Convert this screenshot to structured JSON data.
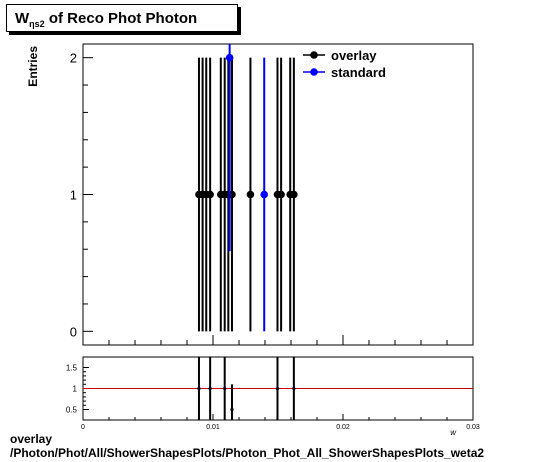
{
  "title": {
    "symbol": "W",
    "subscript": "ηs2",
    "rest": " of Reco Phot Photon"
  },
  "footer": {
    "line1": "overlay",
    "line2": "/Photon/Phot/All/ShowerShapesPlots/Photon_Phot_All_ShowerShapesPlots_weta2"
  },
  "chart_data": [
    {
      "type": "scatter",
      "ylabel": "Entries",
      "xlim": [
        0,
        0.03
      ],
      "ylim": [
        -0.1,
        2.1
      ],
      "x_ticks": [
        {
          "v": 0,
          "label": "0"
        },
        {
          "v": 0.01,
          "label": "0.01"
        },
        {
          "v": 0.02,
          "label": "0.02"
        },
        {
          "v": 0.03,
          "label": "0.03"
        }
      ],
      "y_ticks": [
        {
          "v": 0,
          "label": "0"
        },
        {
          "v": 1,
          "label": "1"
        },
        {
          "v": 2,
          "label": "2"
        }
      ],
      "legend_placement": "top-right",
      "series": [
        {
          "name": "overlay",
          "color": "#000000",
          "points": [
            {
              "x": 0.00892,
              "y": 1,
              "err": 1
            },
            {
              "x": 0.0092,
              "y": 1,
              "err": 1
            },
            {
              "x": 0.00948,
              "y": 1,
              "err": 1
            },
            {
              "x": 0.00978,
              "y": 1,
              "err": 1
            },
            {
              "x": 0.0106,
              "y": 1,
              "err": 1
            },
            {
              "x": 0.0109,
              "y": 1,
              "err": 1
            },
            {
              "x": 0.01118,
              "y": 1,
              "err": 1
            },
            {
              "x": 0.01146,
              "y": 1,
              "err": 1
            },
            {
              "x": 0.01288,
              "y": 1,
              "err": 1
            },
            {
              "x": 0.01496,
              "y": 1,
              "err": 1
            },
            {
              "x": 0.01524,
              "y": 1,
              "err": 1
            },
            {
              "x": 0.01594,
              "y": 1,
              "err": 1
            },
            {
              "x": 0.01622,
              "y": 1,
              "err": 1
            }
          ]
        },
        {
          "name": "standard",
          "color": "#0000ff",
          "points": [
            {
              "x": 0.01128,
              "y": 2,
              "err": 1.414
            },
            {
              "x": 0.01394,
              "y": 1,
              "err": 1
            }
          ]
        }
      ]
    },
    {
      "type": "scatter",
      "xlabel": "w",
      "xlim": [
        0,
        0.03
      ],
      "ylim": [
        0.25,
        1.75
      ],
      "x_ticks": [
        {
          "v": 0,
          "label": "0"
        },
        {
          "v": 0.01,
          "label": "0.01"
        },
        {
          "v": 0.02,
          "label": "0.02"
        },
        {
          "v": 0.03,
          "label": "0.03"
        }
      ],
      "y_ticks": [
        {
          "v": 0.5,
          "label": "0.5"
        },
        {
          "v": 1,
          "label": "1"
        },
        {
          "v": 1.5,
          "label": "1.5"
        }
      ],
      "reference_line": {
        "y": 1,
        "color": "#cc0000"
      },
      "series": [
        {
          "name": "",
          "color": "#000000",
          "points": [
            {
              "x": 0.00892,
              "y": 1,
              "err": 1
            },
            {
              "x": 0.00978,
              "y": 1,
              "err": 1
            },
            {
              "x": 0.0109,
              "y": 1,
              "err": 1
            },
            {
              "x": 0.01146,
              "y": 0.5,
              "err": 0.6
            },
            {
              "x": 0.01496,
              "y": 1,
              "err": 1
            },
            {
              "x": 0.01622,
              "y": 1,
              "err": 1
            }
          ]
        }
      ]
    }
  ]
}
